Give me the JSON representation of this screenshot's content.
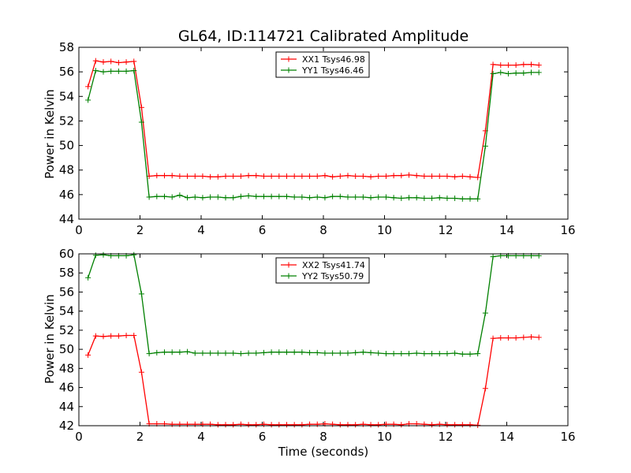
{
  "chart_data": [
    {
      "type": "line",
      "title": "GL64, ID:114721 Calibrated Amplitude",
      "xlabel": "",
      "ylabel": "Power in Kelvin",
      "xlim": [
        0,
        16
      ],
      "ylim": [
        44,
        58
      ],
      "xticks": [
        0,
        2,
        4,
        6,
        8,
        10,
        12,
        14,
        16
      ],
      "yticks": [
        44,
        46,
        48,
        50,
        52,
        54,
        56,
        58
      ],
      "grid": false,
      "legend_position": "top-center",
      "x": [
        0.3,
        0.55,
        0.8,
        1.05,
        1.3,
        1.55,
        1.8,
        2.05,
        2.3,
        2.55,
        2.8,
        3.05,
        3.3,
        3.55,
        3.8,
        4.05,
        4.3,
        4.55,
        4.8,
        5.05,
        5.3,
        5.55,
        5.8,
        6.05,
        6.3,
        6.55,
        6.8,
        7.05,
        7.3,
        7.55,
        7.8,
        8.05,
        8.3,
        8.55,
        8.8,
        9.05,
        9.3,
        9.55,
        9.8,
        10.05,
        10.3,
        10.55,
        10.8,
        11.05,
        11.3,
        11.55,
        11.8,
        12.05,
        12.3,
        12.55,
        12.8,
        13.05,
        13.3,
        13.55,
        13.8,
        14.05,
        14.3,
        14.55,
        14.8,
        15.05
      ],
      "series": [
        {
          "name": "XX1 Tsys46.98",
          "color": "#ff0000",
          "values": [
            54.8,
            56.9,
            56.8,
            56.85,
            56.75,
            56.8,
            56.85,
            53.1,
            47.5,
            47.55,
            47.55,
            47.55,
            47.5,
            47.5,
            47.5,
            47.5,
            47.45,
            47.45,
            47.5,
            47.5,
            47.5,
            47.55,
            47.55,
            47.5,
            47.5,
            47.5,
            47.5,
            47.5,
            47.5,
            47.5,
            47.5,
            47.55,
            47.45,
            47.5,
            47.55,
            47.5,
            47.5,
            47.45,
            47.5,
            47.5,
            47.55,
            47.55,
            47.6,
            47.55,
            47.5,
            47.5,
            47.5,
            47.5,
            47.45,
            47.5,
            47.45,
            47.4,
            51.2,
            56.6,
            56.55,
            56.55,
            56.55,
            56.6,
            56.6,
            56.55
          ]
        },
        {
          "name": "YY1 Tsys46.46",
          "color": "#008000",
          "values": [
            53.7,
            56.1,
            56.0,
            56.05,
            56.05,
            56.05,
            56.1,
            51.9,
            45.8,
            45.85,
            45.85,
            45.8,
            45.95,
            45.75,
            45.8,
            45.75,
            45.8,
            45.8,
            45.75,
            45.75,
            45.85,
            45.9,
            45.85,
            45.85,
            45.85,
            45.85,
            45.85,
            45.8,
            45.8,
            45.75,
            45.8,
            45.75,
            45.85,
            45.85,
            45.8,
            45.8,
            45.8,
            45.75,
            45.8,
            45.8,
            45.75,
            45.7,
            45.75,
            45.75,
            45.7,
            45.7,
            45.75,
            45.7,
            45.7,
            45.65,
            45.65,
            45.65,
            49.95,
            55.85,
            55.95,
            55.85,
            55.9,
            55.9,
            55.95,
            55.95
          ]
        }
      ]
    },
    {
      "type": "line",
      "title": "",
      "xlabel": "Time (seconds)",
      "ylabel": "Power in Kelvin",
      "xlim": [
        0,
        16
      ],
      "ylim": [
        42,
        60
      ],
      "xticks": [
        0,
        2,
        4,
        6,
        8,
        10,
        12,
        14,
        16
      ],
      "yticks": [
        42,
        44,
        46,
        48,
        50,
        52,
        54,
        56,
        58,
        60
      ],
      "grid": false,
      "legend_position": "top-center",
      "x": [
        0.3,
        0.55,
        0.8,
        1.05,
        1.3,
        1.55,
        1.8,
        2.05,
        2.3,
        2.55,
        2.8,
        3.05,
        3.3,
        3.55,
        3.8,
        4.05,
        4.3,
        4.55,
        4.8,
        5.05,
        5.3,
        5.55,
        5.8,
        6.05,
        6.3,
        6.55,
        6.8,
        7.05,
        7.3,
        7.55,
        7.8,
        8.05,
        8.3,
        8.55,
        8.8,
        9.05,
        9.3,
        9.55,
        9.8,
        10.05,
        10.3,
        10.55,
        10.8,
        11.05,
        11.3,
        11.55,
        11.8,
        12.05,
        12.3,
        12.55,
        12.8,
        13.05,
        13.3,
        13.55,
        13.8,
        14.05,
        14.3,
        14.55,
        14.8,
        15.05
      ],
      "series": [
        {
          "name": "XX2 Tsys41.74",
          "color": "#ff0000",
          "values": [
            49.4,
            51.4,
            51.35,
            51.4,
            51.4,
            51.45,
            51.45,
            47.6,
            42.2,
            42.2,
            42.2,
            42.15,
            42.15,
            42.15,
            42.15,
            42.15,
            42.15,
            42.1,
            42.1,
            42.1,
            42.15,
            42.1,
            42.1,
            42.15,
            42.1,
            42.1,
            42.1,
            42.1,
            42.1,
            42.15,
            42.15,
            42.2,
            42.15,
            42.1,
            42.1,
            42.1,
            42.15,
            42.1,
            42.1,
            42.15,
            42.15,
            42.1,
            42.2,
            42.2,
            42.15,
            42.1,
            42.15,
            42.1,
            42.1,
            42.1,
            42.1,
            42.05,
            45.9,
            51.15,
            51.2,
            51.2,
            51.2,
            51.25,
            51.3,
            51.25
          ]
        },
        {
          "name": "YY2 Tsys50.79",
          "color": "#008000",
          "values": [
            57.5,
            59.85,
            59.9,
            59.8,
            59.8,
            59.8,
            59.9,
            55.8,
            49.55,
            49.65,
            49.7,
            49.7,
            49.7,
            49.75,
            49.6,
            49.6,
            49.6,
            49.6,
            49.6,
            49.6,
            49.55,
            49.6,
            49.6,
            49.65,
            49.7,
            49.7,
            49.7,
            49.7,
            49.7,
            49.65,
            49.65,
            49.6,
            49.6,
            49.6,
            49.6,
            49.65,
            49.7,
            49.65,
            49.6,
            49.55,
            49.55,
            49.55,
            49.55,
            49.6,
            49.55,
            49.55,
            49.55,
            49.55,
            49.6,
            49.5,
            49.5,
            49.55,
            53.8,
            59.7,
            59.8,
            59.8,
            59.8,
            59.8,
            59.8,
            59.8
          ]
        }
      ]
    }
  ]
}
